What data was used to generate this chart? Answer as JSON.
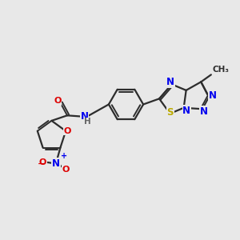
{
  "background_color": "#e8e8e8",
  "bond_color": "#2d2d2d",
  "atom_colors": {
    "N": "#0000ee",
    "O": "#dd0000",
    "S": "#bbaa00",
    "C": "#2d2d2d",
    "H": "#666666"
  },
  "figsize": [
    3.0,
    3.0
  ],
  "dpi": 100
}
